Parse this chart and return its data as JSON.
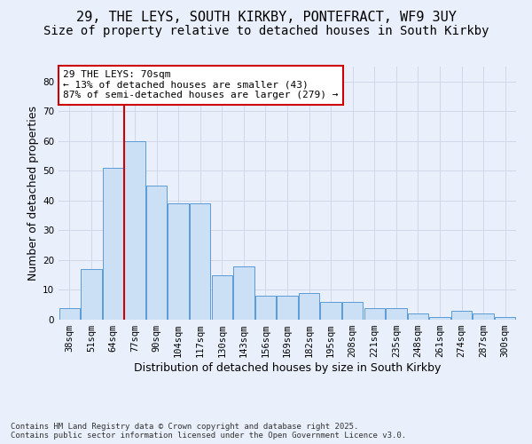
{
  "title_line1": "29, THE LEYS, SOUTH KIRKBY, PONTEFRACT, WF9 3UY",
  "title_line2": "Size of property relative to detached houses in South Kirkby",
  "xlabel": "Distribution of detached houses by size in South Kirkby",
  "ylabel": "Number of detached properties",
  "categories": [
    "38sqm",
    "51sqm",
    "64sqm",
    "77sqm",
    "90sqm",
    "104sqm",
    "117sqm",
    "130sqm",
    "143sqm",
    "156sqm",
    "169sqm",
    "182sqm",
    "195sqm",
    "208sqm",
    "221sqm",
    "235sqm",
    "248sqm",
    "261sqm",
    "274sqm",
    "287sqm",
    "300sqm"
  ],
  "values": [
    4,
    17,
    51,
    60,
    45,
    39,
    39,
    15,
    18,
    8,
    8,
    9,
    6,
    6,
    4,
    4,
    2,
    1,
    3,
    2,
    1
  ],
  "bar_color": "#cce0f5",
  "bar_edge_color": "#5b9bd5",
  "grid_color": "#d0d8e8",
  "background_color": "#eaf0fb",
  "vline_color": "#cc0000",
  "vline_index": 2.5,
  "annotation_text": "29 THE LEYS: 70sqm\n← 13% of detached houses are smaller (43)\n87% of semi-detached houses are larger (279) →",
  "annotation_box_color": "#ffffff",
  "annotation_box_edge": "#cc0000",
  "ylim": [
    0,
    85
  ],
  "yticks": [
    0,
    10,
    20,
    30,
    40,
    50,
    60,
    70,
    80
  ],
  "footer_text": "Contains HM Land Registry data © Crown copyright and database right 2025.\nContains public sector information licensed under the Open Government Licence v3.0.",
  "title_fontsize": 11,
  "subtitle_fontsize": 10,
  "axis_label_fontsize": 9,
  "tick_fontsize": 7.5,
  "annotation_fontsize": 8,
  "footer_fontsize": 6.5
}
